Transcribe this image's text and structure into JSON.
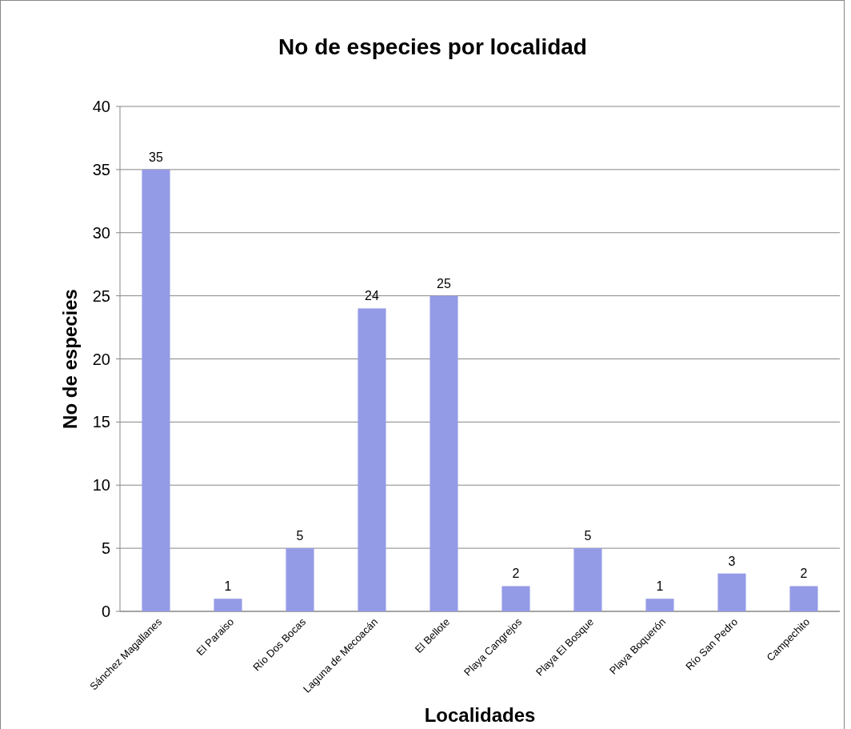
{
  "chart_data": {
    "type": "bar",
    "title": "No de especies por localidad",
    "xlabel": "Localidades",
    "ylabel": "No de especies",
    "categories": [
      "Sánchez Magallanes",
      "El Paraiso",
      "Río Dos Bocas",
      "Laguna de Mecoacán",
      "El Bellote",
      "Playa Cangrejos",
      "Playa El Bosque",
      "Playa Boquerón",
      "Río San Pedro",
      "Campechito"
    ],
    "values": [
      35,
      1,
      5,
      24,
      25,
      2,
      5,
      1,
      3,
      2
    ],
    "color": "#949be6",
    "ylim": [
      0,
      40
    ],
    "yticks": [
      0,
      5,
      10,
      15,
      20,
      25,
      30,
      35,
      40
    ],
    "grid": "y",
    "data_labels": true
  }
}
